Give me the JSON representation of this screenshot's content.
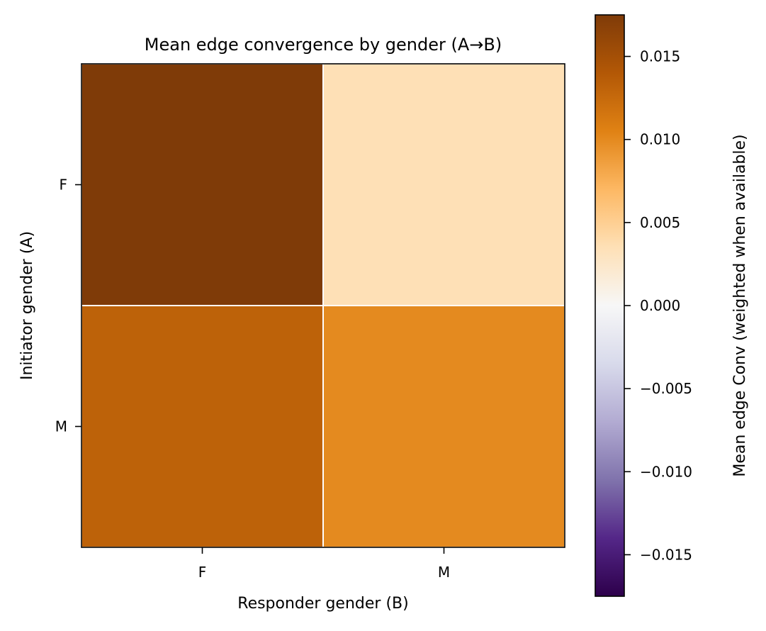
{
  "chart_data": {
    "type": "heatmap",
    "title": "Mean edge convergence by gender (A→B)",
    "xlabel": "Responder gender (B)",
    "ylabel": "Initiator gender (A)",
    "x_categories": [
      "F",
      "M"
    ],
    "y_categories": [
      "F",
      "M"
    ],
    "values": [
      [
        0.0175,
        0.0035
      ],
      [
        0.0132,
        0.01
      ]
    ],
    "colorbar": {
      "label": "Mean edge Conv (weighted when available)",
      "range": [
        -0.0175,
        0.0175
      ],
      "ticks": [
        0.015,
        0.01,
        0.005,
        0.0,
        -0.005,
        -0.01,
        -0.015
      ],
      "tick_labels": [
        "0.015",
        "0.010",
        "0.005",
        "0.000",
        "−0.005",
        "−0.010",
        "−0.015"
      ],
      "colormap": "PuOr_r",
      "colors": [
        "#2d004b",
        "#542788",
        "#8073ac",
        "#b2abd2",
        "#d8daeb",
        "#f7f7f7",
        "#fee0b6",
        "#fdb863",
        "#e08214",
        "#b35806",
        "#7f3b08"
      ]
    },
    "grid": false,
    "cell_border_color": "#ffffff"
  }
}
